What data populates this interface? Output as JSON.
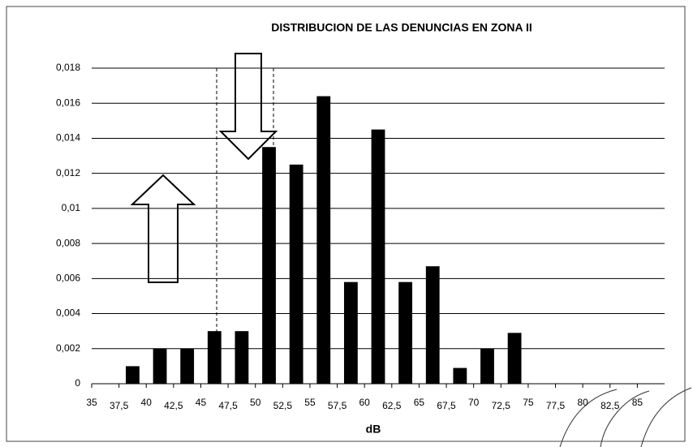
{
  "chart_data": {
    "type": "histogram",
    "title": "DISTRIBUCION DE LAS DENUNCIAS EN ZONA II",
    "xlabel": "dB",
    "bins": [
      37.5,
      40,
      42.5,
      45,
      47.5,
      50,
      52.5,
      55,
      57.5,
      60,
      62.5,
      65,
      67.5,
      70,
      72.5,
      75
    ],
    "values": [
      0.001,
      0.002,
      0.002,
      0.003,
      0.003,
      0.0135,
      0.0125,
      0.0164,
      0.0058,
      0.0145,
      0.0058,
      0.0067,
      0.0009,
      0.002,
      0.0029
    ],
    "color": "#000000",
    "xlim": [
      35,
      87.5
    ],
    "xticks": [
      35,
      {
        "value": 37.5,
        "label": "37,5"
      },
      40,
      {
        "value": 42.5,
        "label": "42,5"
      },
      45,
      {
        "value": 47.5,
        "label": "47,5"
      },
      50,
      {
        "value": 52.5,
        "label": "52,5"
      },
      55,
      {
        "value": 57.5,
        "label": "57,5"
      },
      60,
      {
        "value": 62.5,
        "label": "62,5"
      },
      65,
      {
        "value": 67.5,
        "label": "67,5"
      },
      70,
      {
        "value": 72.5,
        "label": "72,5"
      },
      75,
      {
        "value": 77.5,
        "label": "77,5"
      },
      80,
      {
        "value": 82.5,
        "label": "82,5"
      },
      85
    ],
    "ylim": [
      0,
      0.018
    ],
    "yticks": [
      0,
      {
        "value": 0.002,
        "label": "0,002"
      },
      {
        "value": 0.004,
        "label": "0,004"
      },
      {
        "value": 0.006,
        "label": "0,006"
      },
      {
        "value": 0.008,
        "label": "0,008"
      },
      {
        "value": 0.01,
        "label": "0,01"
      },
      {
        "value": 0.012,
        "label": "0,012"
      },
      {
        "value": 0.014,
        "label": "0,014"
      },
      {
        "value": 0.016,
        "label": "0,016"
      },
      {
        "value": 0.018,
        "label": "0,018"
      }
    ],
    "grid": true
  }
}
